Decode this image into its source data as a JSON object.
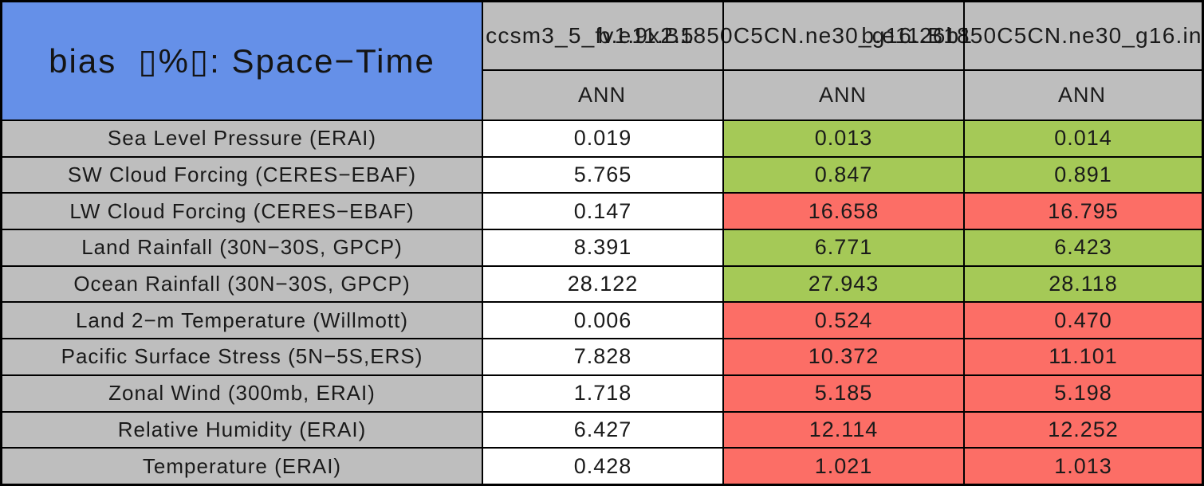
{
  "table": {
    "title": "bias  ▯%▯: Space−Time",
    "season_label": "ANN",
    "columns": [
      {
        "name": "ccsm3_5_fv1.9x2.5"
      },
      {
        "name": "b.e11.B1850C5CN.ne30_g16.26b1"
      },
      {
        "name": "b.e11.B1850C5CN.ne30_g16.in"
      }
    ],
    "rows": [
      {
        "label": "Sea Level Pressure (ERAI)",
        "values": [
          "0.019",
          "0.013",
          "0.014"
        ],
        "colors": [
          "white",
          "green",
          "green"
        ]
      },
      {
        "label": "SW Cloud Forcing (CERES−EBAF)",
        "values": [
          "5.765",
          "0.847",
          "0.891"
        ],
        "colors": [
          "white",
          "green",
          "green"
        ]
      },
      {
        "label": "LW Cloud Forcing (CERES−EBAF)",
        "values": [
          "0.147",
          "16.658",
          "16.795"
        ],
        "colors": [
          "white",
          "red",
          "red"
        ]
      },
      {
        "label": "Land Rainfall (30N−30S, GPCP)",
        "values": [
          "8.391",
          "6.771",
          "6.423"
        ],
        "colors": [
          "white",
          "green",
          "green"
        ]
      },
      {
        "label": "Ocean Rainfall (30N−30S, GPCP)",
        "values": [
          "28.122",
          "27.943",
          "28.118"
        ],
        "colors": [
          "white",
          "green",
          "green"
        ]
      },
      {
        "label": "Land 2−m Temperature (Willmott)",
        "values": [
          "0.006",
          "0.524",
          "0.470"
        ],
        "colors": [
          "white",
          "red",
          "red"
        ]
      },
      {
        "label": "Pacific Surface Stress (5N−5S,ERS)",
        "values": [
          "7.828",
          "10.372",
          "11.101"
        ],
        "colors": [
          "white",
          "red",
          "red"
        ]
      },
      {
        "label": "Zonal Wind (300mb, ERAI)",
        "values": [
          "1.718",
          "5.185",
          "5.198"
        ],
        "colors": [
          "white",
          "red",
          "red"
        ]
      },
      {
        "label": "Relative Humidity (ERAI)",
        "values": [
          "6.427",
          "12.114",
          "12.252"
        ],
        "colors": [
          "white",
          "red",
          "red"
        ]
      },
      {
        "label": "Temperature (ERAI)",
        "values": [
          "0.428",
          "1.021",
          "1.013"
        ],
        "colors": [
          "white",
          "red",
          "red"
        ]
      }
    ],
    "palette": {
      "header_blue": "#6590E8",
      "cell_gray": "#BEBEBE",
      "improved_green": "#A5C957",
      "degraded_red": "#FC6E66",
      "neutral_white": "#FFFFFF",
      "border_black": "#000000"
    }
  },
  "chart_data": {
    "type": "table",
    "title": "bias ▯%▯: Space−Time",
    "season": "ANN",
    "columns": [
      "ccsm3_5_fv1.9x2.5",
      "b.e11.B1850C5CN.ne30_g16.26b1",
      "b.e11.B1850C5CN.ne30_g16.in"
    ],
    "row_labels": [
      "Sea Level Pressure (ERAI)",
      "SW Cloud Forcing (CERES−EBAF)",
      "LW Cloud Forcing (CERES−EBAF)",
      "Land Rainfall (30N−30S, GPCP)",
      "Ocean Rainfall (30N−30S, GPCP)",
      "Land 2−m Temperature (Willmott)",
      "Pacific Surface Stress (5N−5S,ERS)",
      "Zonal Wind (300mb, ERAI)",
      "Relative Humidity (ERAI)",
      "Temperature (ERAI)"
    ],
    "values": [
      [
        0.019,
        0.013,
        0.014
      ],
      [
        5.765,
        0.847,
        0.891
      ],
      [
        0.147,
        16.658,
        16.795
      ],
      [
        8.391,
        6.771,
        6.423
      ],
      [
        28.122,
        27.943,
        28.118
      ],
      [
        0.006,
        0.524,
        0.47
      ],
      [
        7.828,
        10.372,
        11.101
      ],
      [
        1.718,
        5.185,
        5.198
      ],
      [
        6.427,
        12.114,
        12.252
      ],
      [
        0.428,
        1.021,
        1.013
      ]
    ],
    "cell_highlight": [
      [
        "white",
        "green",
        "green"
      ],
      [
        "white",
        "green",
        "green"
      ],
      [
        "white",
        "red",
        "red"
      ],
      [
        "white",
        "green",
        "green"
      ],
      [
        "white",
        "green",
        "green"
      ],
      [
        "white",
        "red",
        "red"
      ],
      [
        "white",
        "red",
        "red"
      ],
      [
        "white",
        "red",
        "red"
      ],
      [
        "white",
        "red",
        "red"
      ],
      [
        "white",
        "red",
        "red"
      ]
    ],
    "layout": {
      "grid": true,
      "legend_position": "none"
    }
  }
}
